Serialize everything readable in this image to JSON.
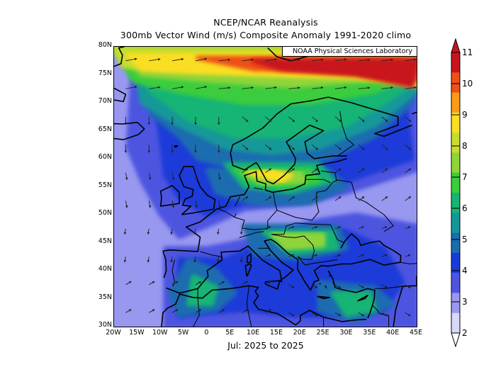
{
  "title": "NCEP/NCAR Reanalysis",
  "subtitle": "300mb Vector Wind (m/s) Composite Anomaly 1991-2020 climo",
  "period": "Jul: 2025 to 2025",
  "credit": "NOAA Physical Sciences Laboratory",
  "lat_labels": [
    "80N",
    "75N",
    "70N",
    "65N",
    "60N",
    "55N",
    "50N",
    "45N",
    "40N",
    "35N",
    "30N"
  ],
  "lon_labels": [
    "20W",
    "15W",
    "10W",
    "5W",
    "0",
    "5E",
    "10E",
    "15E",
    "20E",
    "25E",
    "30E",
    "35E",
    "40E",
    "45E"
  ],
  "colorbar": {
    "labels": [
      "11",
      "10",
      "9",
      "8",
      "7",
      "6",
      "5",
      "4",
      "3",
      "2"
    ],
    "colors": [
      "#c8141e",
      "#ee5018",
      "#fa9a16",
      "#fade20",
      "#c8dc2e",
      "#90d43a",
      "#3acd3c",
      "#18b474",
      "#13989a",
      "#1a6cb0",
      "#1a3ad8",
      "#4e54e0",
      "#9898f0",
      "#d8d8fa"
    ]
  },
  "chart_data": {
    "type": "heatmap",
    "variable": "300mb Vector Wind (m/s) Composite Anomaly",
    "lon_range": [
      -20,
      45
    ],
    "lat_range": [
      30,
      80
    ],
    "colorbar_range": [
      2,
      11
    ],
    "features": [
      {
        "region": "Arctic band 72-78N",
        "value": 10
      },
      {
        "region": "Barents Sea 72-75N 35-45E",
        "value": 11
      },
      {
        "region": "Southern Scandinavia / Baltic 55-60N",
        "value": 9
      },
      {
        "region": "Norwegian Sea 65-70N",
        "value": 8
      },
      {
        "region": "Hungary / Balkans 45-47N 20-25E",
        "value": 8
      },
      {
        "region": "Western Mediterranean 35-38N",
        "value": 7
      },
      {
        "region": "Eastern Mediterranean 35N 30E",
        "value": 7
      },
      {
        "region": "France 48-52N",
        "value": 3
      },
      {
        "region": "Russia 50N 40E",
        "value": 2
      }
    ]
  }
}
